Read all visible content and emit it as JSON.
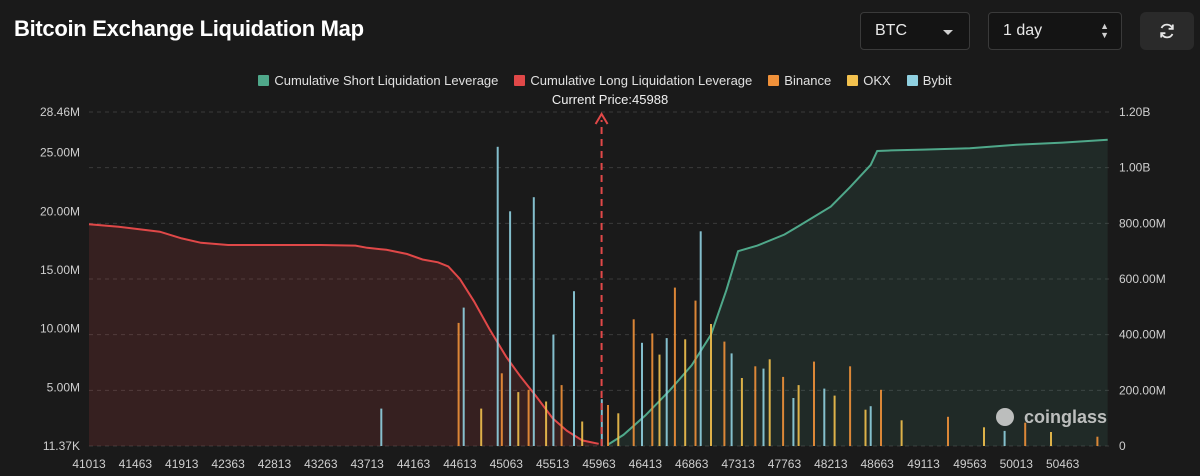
{
  "header": {
    "title": "Bitcoin Exchange Liquidation Map",
    "coin_select": "BTC",
    "range_select": "1 day",
    "refresh_icon": "refresh-icon"
  },
  "legend": [
    {
      "label": "Cumulative Short Liquidation Leverage",
      "color": "#4fa88a"
    },
    {
      "label": "Cumulative Long Liquidation Leverage",
      "color": "#e04848"
    },
    {
      "label": "Binance",
      "color": "#f0913a"
    },
    {
      "label": "OKX",
      "color": "#f2c14e"
    },
    {
      "label": "Bybit",
      "color": "#8fd0e0"
    }
  ],
  "watermark": "coinglass",
  "chart_data": {
    "type": "bar",
    "title": "",
    "current_price_label": "Current Price:45988",
    "current_price": 45988,
    "x_range": [
      41013,
      50913
    ],
    "x_tick_labels": [
      "41013",
      "41463",
      "41913",
      "42363",
      "42813",
      "43263",
      "43713",
      "44163",
      "44613",
      "45063",
      "45513",
      "45963",
      "46413",
      "46863",
      "47313",
      "47763",
      "48213",
      "48663",
      "49113",
      "49563",
      "50013",
      "50463"
    ],
    "left_axis": {
      "tick_labels": [
        "28.46M",
        "25.00M",
        "20.00M",
        "15.00M",
        "10.00M",
        "5.00M",
        "11.37K"
      ],
      "tick_values": [
        28460000,
        25000000,
        20000000,
        15000000,
        10000000,
        5000000,
        11370
      ],
      "range": [
        11370,
        28460000
      ]
    },
    "right_axis": {
      "tick_labels": [
        "1.20B",
        "1.00B",
        "800.00M",
        "600.00M",
        "400.00M",
        "200.00M",
        "0"
      ],
      "tick_values": [
        1200000000,
        1000000000,
        800000000,
        600000000,
        400000000,
        200000000,
        0
      ],
      "range": [
        0,
        1200000000
      ]
    },
    "series": [
      {
        "name": "Cumulative Long Liquidation Leverage",
        "axis": "right",
        "type": "area",
        "points": [
          [
            41013,
            797000000
          ],
          [
            41300,
            788000000
          ],
          [
            41700,
            770000000
          ],
          [
            41913,
            746000000
          ],
          [
            42100,
            730000000
          ],
          [
            42363,
            722000000
          ],
          [
            42813,
            722000000
          ],
          [
            43263,
            722000000
          ],
          [
            43600,
            720000000
          ],
          [
            43713,
            712000000
          ],
          [
            43900,
            705000000
          ],
          [
            44100,
            690000000
          ],
          [
            44250,
            670000000
          ],
          [
            44400,
            660000000
          ],
          [
            44500,
            645000000
          ],
          [
            44613,
            600000000
          ],
          [
            44750,
            520000000
          ],
          [
            44900,
            420000000
          ],
          [
            45063,
            320000000
          ],
          [
            45200,
            250000000
          ],
          [
            45350,
            180000000
          ],
          [
            45513,
            100000000
          ],
          [
            45650,
            55000000
          ],
          [
            45800,
            20000000
          ],
          [
            45960,
            8000000
          ]
        ]
      },
      {
        "name": "Cumulative Short Liquidation Leverage",
        "axis": "right",
        "type": "area",
        "points": [
          [
            46050,
            5000000
          ],
          [
            46200,
            40000000
          ],
          [
            46413,
            110000000
          ],
          [
            46650,
            200000000
          ],
          [
            46863,
            290000000
          ],
          [
            47050,
            400000000
          ],
          [
            47200,
            560000000
          ],
          [
            47313,
            700000000
          ],
          [
            47500,
            720000000
          ],
          [
            47763,
            760000000
          ],
          [
            47900,
            790000000
          ],
          [
            48213,
            860000000
          ],
          [
            48400,
            930000000
          ],
          [
            48600,
            1010000000
          ],
          [
            48663,
            1060000000
          ],
          [
            48800,
            1062000000
          ],
          [
            49113,
            1065000000
          ],
          [
            49563,
            1070000000
          ],
          [
            50013,
            1082000000
          ],
          [
            50463,
            1090000000
          ],
          [
            50900,
            1100000000
          ]
        ]
      },
      {
        "name": "Binance",
        "axis": "left",
        "type": "bar",
        "points": [
          [
            44600,
            10500000
          ],
          [
            45020,
            6200000
          ],
          [
            45280,
            4800000
          ],
          [
            45600,
            5200000
          ],
          [
            46050,
            3500000
          ],
          [
            46300,
            10800000
          ],
          [
            46480,
            9600000
          ],
          [
            46700,
            13500000
          ],
          [
            46900,
            12400000
          ],
          [
            47180,
            8900000
          ],
          [
            47480,
            6800000
          ],
          [
            47750,
            5900000
          ],
          [
            48050,
            7200000
          ],
          [
            48400,
            6800000
          ],
          [
            48700,
            4800000
          ],
          [
            49350,
            2500000
          ],
          [
            50100,
            2000000
          ],
          [
            50800,
            800000
          ]
        ]
      },
      {
        "name": "OKX",
        "axis": "left",
        "type": "bar",
        "points": [
          [
            44820,
            3200000
          ],
          [
            45180,
            4600000
          ],
          [
            45450,
            3800000
          ],
          [
            45800,
            2100000
          ],
          [
            46150,
            2800000
          ],
          [
            46550,
            7800000
          ],
          [
            46800,
            9100000
          ],
          [
            47050,
            10400000
          ],
          [
            47350,
            5800000
          ],
          [
            47620,
            7400000
          ],
          [
            47900,
            5200000
          ],
          [
            48250,
            4300000
          ],
          [
            48550,
            3100000
          ],
          [
            48900,
            2200000
          ],
          [
            49700,
            1600000
          ],
          [
            50350,
            1200000
          ]
        ]
      },
      {
        "name": "Bybit",
        "axis": "left",
        "type": "bar",
        "points": [
          [
            43850,
            3200000
          ],
          [
            44650,
            11800000
          ],
          [
            44980,
            25500000
          ],
          [
            45100,
            20000000
          ],
          [
            45330,
            21200000
          ],
          [
            45520,
            9500000
          ],
          [
            45720,
            13200000
          ],
          [
            45990,
            4000000
          ],
          [
            46380,
            8800000
          ],
          [
            46620,
            9200000
          ],
          [
            46950,
            18300000
          ],
          [
            47250,
            7900000
          ],
          [
            47560,
            6600000
          ],
          [
            47850,
            4100000
          ],
          [
            48150,
            4900000
          ],
          [
            48600,
            3400000
          ],
          [
            49900,
            1300000
          ]
        ]
      }
    ]
  }
}
